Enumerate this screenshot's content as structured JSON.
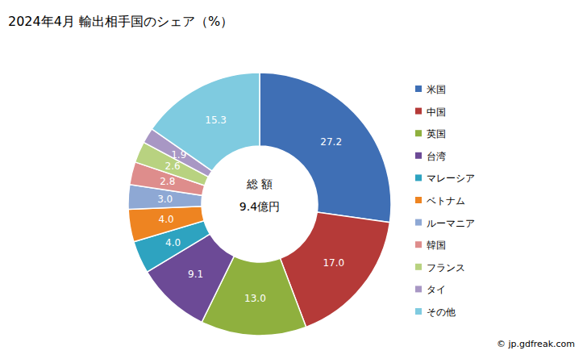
{
  "chart_data": {
    "type": "pie",
    "title": "2024年4月 輸出相手国のシェア（%）",
    "categories": [
      "米国",
      "中国",
      "英国",
      "台湾",
      "マレーシア",
      "ベトナム",
      "ルーマニア",
      "韓国",
      "フランス",
      "タイ",
      "その他"
    ],
    "values": [
      27.2,
      17.0,
      13.0,
      9.1,
      4.0,
      4.0,
      3.0,
      2.8,
      2.6,
      1.9,
      15.3
    ],
    "value_labels": [
      "27.2",
      "17.0",
      "13.0",
      "9.1",
      "4.0",
      "4.0",
      "3.0",
      "2.8",
      "2.6",
      "1.9",
      "15.3"
    ],
    "colors": [
      "#3f6fb5",
      "#b53a38",
      "#8fb03e",
      "#6c4a96",
      "#2ea3c0",
      "#ee8421",
      "#8ea8d4",
      "#de8d8c",
      "#b8d280",
      "#a897c4",
      "#7fcbe0"
    ],
    "data_labels": true,
    "legend": "right",
    "center_text": [
      "総 額",
      "9.4億円"
    ],
    "source": "© jp.gdfreak.com"
  }
}
